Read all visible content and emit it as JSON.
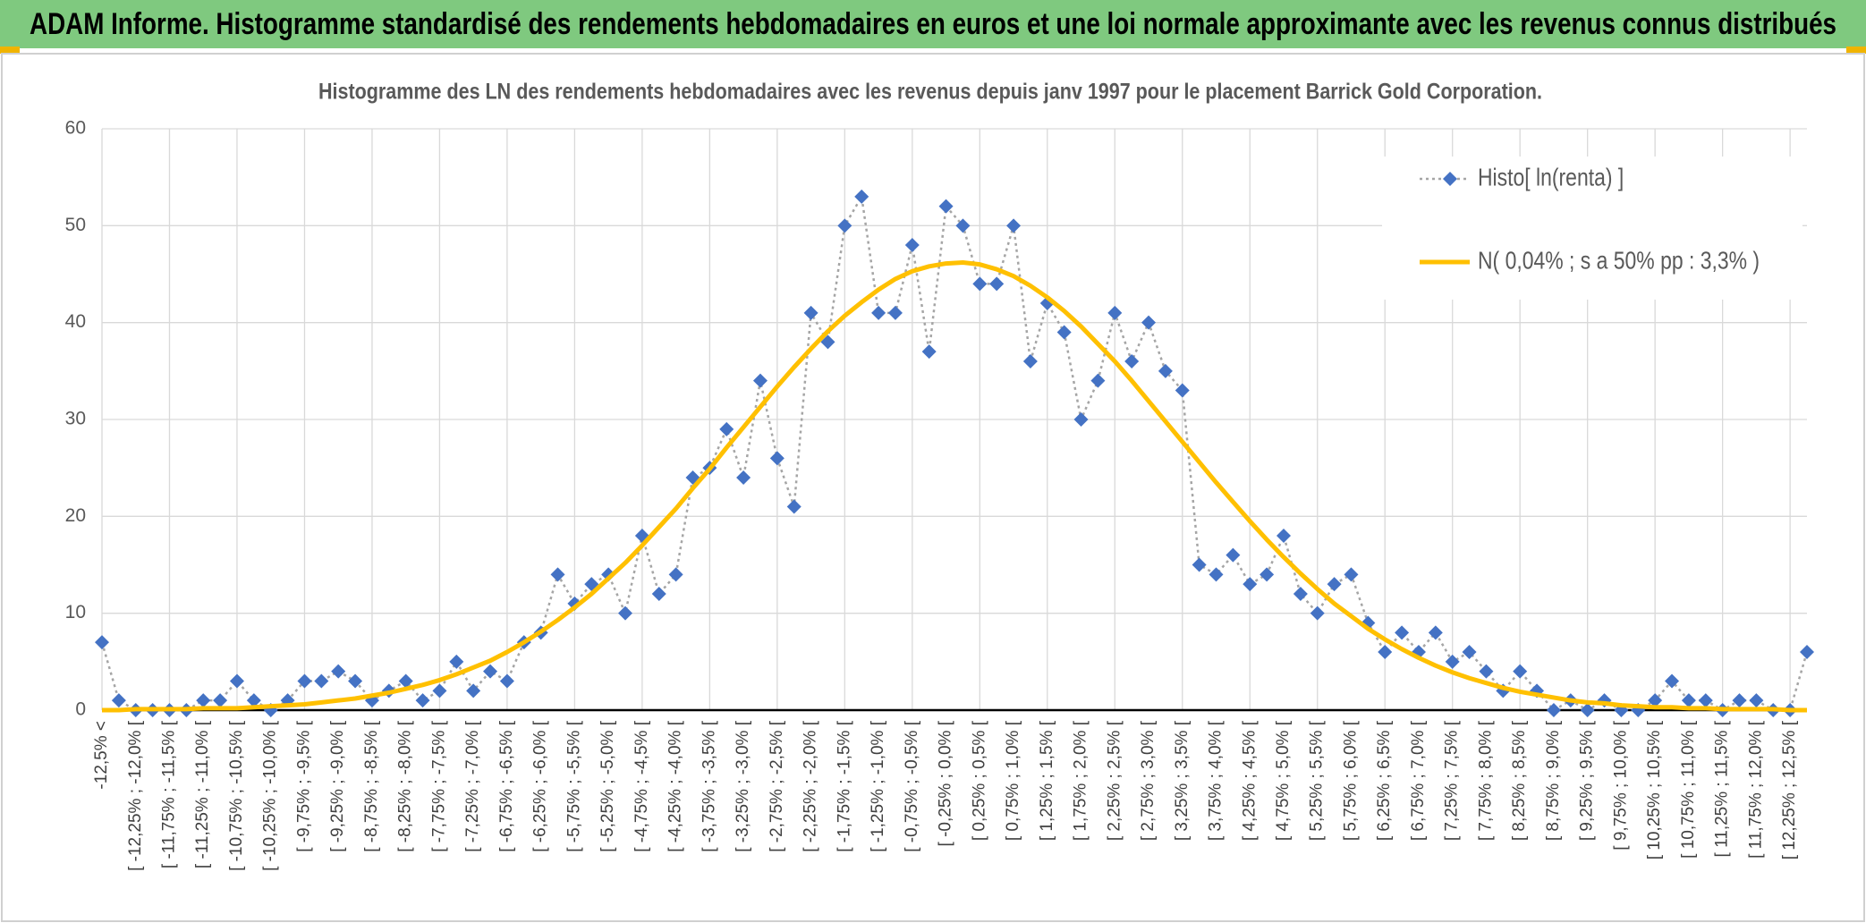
{
  "header": {
    "title": "ADAM Informe. Histogramme standardisé des rendements hebdomadaires en euros et une loi normale approximante avec les revenus connus distribués"
  },
  "chart_data": {
    "type": "line",
    "title": "Histogramme des LN des rendements hebdomadaires avec les revenus depuis janv 1997 pour le placement Barrick Gold Corporation.",
    "categories": [
      "-12,5% <",
      null,
      "[ -12,25% ; -12,0% [",
      null,
      "[ -11,75% ; -11,5% [",
      null,
      "[ -11,25% ; -11,0% [",
      null,
      "[ -10,75% ; -10,5% [",
      null,
      "[ -10,25% ; -10,0% [",
      null,
      "[ -9,75% ; -9,5% [",
      null,
      "[ -9,25% ; -9,0% [",
      null,
      "[ -8,75% ; -8,5% [",
      null,
      "[ -8,25% ; -8,0% [",
      null,
      "[ -7,75% ; -7,5% [",
      null,
      "[ -7,25% ; -7,0% [",
      null,
      "[ -6,75% ; -6,5% [",
      null,
      "[ -6,25% ; -6,0% [",
      null,
      "[ -5,75% ; -5,5% [",
      null,
      "[ -5,25% ; -5,0% [",
      null,
      "[ -4,75% ; -4,5% [",
      null,
      "[ -4,25% ; -4,0% [",
      null,
      "[ -3,75% ; -3,5% [",
      null,
      "[ -3,25% ; -3,0% [",
      null,
      "[ -2,75% ; -2,5% [",
      null,
      "[ -2,25% ; -2,0% [",
      null,
      "[ -1,75% ; -1,5% [",
      null,
      "[ -1,25% ; -1,0% [",
      null,
      "[ -0,75% ; -0,5% [",
      null,
      "[ -0,25% ; 0,0% [",
      null,
      "[ 0,25% ; 0,5% [",
      null,
      "[ 0,75% ; 1,0% [",
      null,
      "[ 1,25% ; 1,5% [",
      null,
      "[ 1,75% ; 2,0% [",
      null,
      "[ 2,25% ; 2,5% [",
      null,
      "[ 2,75% ; 3,0% [",
      null,
      "[ 3,25% ; 3,5% [",
      null,
      "[ 3,75% ; 4,0% [",
      null,
      "[ 4,25% ; 4,5% [",
      null,
      "[ 4,75% ; 5,0% [",
      null,
      "[ 5,25% ; 5,5% [",
      null,
      "[ 5,75% ; 6,0% [",
      null,
      "[ 6,25% ; 6,5% [",
      null,
      "[ 6,75% ; 7,0% [",
      null,
      "[ 7,25% ; 7,5% [",
      null,
      "[ 7,75% ; 8,0% [",
      null,
      "[ 8,25% ; 8,5% [",
      null,
      "[ 8,75% ; 9,0% [",
      null,
      "[ 9,25% ; 9,5% [",
      null,
      "[ 9,75% ; 10,0% [",
      null,
      "[ 10,25% ; 10,5% [",
      null,
      "[ 10,75% ; 11,0% [",
      null,
      "[ 11,25% ; 11,5% [",
      null,
      "[ 11,75% ; 12,0% [",
      null,
      "[ 12,25% ; 12,5% [",
      null
    ],
    "series": [
      {
        "name": "Histo[ ln(renta) ]",
        "color": "#4472c4",
        "line_color": "#a5a5a5",
        "line_style": "dotted",
        "marker": "diamond",
        "values": [
          7,
          1,
          0,
          0,
          0,
          0,
          1,
          1,
          3,
          1,
          0,
          1,
          3,
          3,
          4,
          3,
          1,
          2,
          3,
          1,
          2,
          5,
          2,
          4,
          3,
          7,
          8,
          14,
          11,
          13,
          14,
          10,
          18,
          12,
          14,
          24,
          25,
          29,
          24,
          34,
          26,
          21,
          41,
          38,
          50,
          53,
          41,
          41,
          48,
          37,
          52,
          50,
          44,
          44,
          50,
          36,
          42,
          39,
          30,
          34,
          41,
          36,
          40,
          35,
          33,
          15,
          14,
          16,
          13,
          14,
          18,
          12,
          10,
          13,
          14,
          9,
          6,
          8,
          6,
          8,
          5,
          6,
          4,
          2,
          4,
          2,
          0,
          1,
          0,
          1,
          0,
          0,
          1,
          3,
          1,
          1,
          0,
          1,
          1,
          0,
          0,
          6
        ]
      },
      {
        "name": "N( 0,04% ; s a 50% pp : 3,3% )",
        "color": "#ffc000",
        "line_style": "solid",
        "marker": "none",
        "values": [
          0.0,
          0.0,
          0.1,
          0.1,
          0.1,
          0.1,
          0.2,
          0.2,
          0.2,
          0.3,
          0.4,
          0.5,
          0.6,
          0.8,
          1.0,
          1.2,
          1.5,
          1.8,
          2.2,
          2.6,
          3.1,
          3.7,
          4.4,
          5.1,
          6.0,
          7.0,
          8.1,
          9.3,
          10.6,
          12.0,
          13.6,
          15.2,
          17.0,
          18.9,
          20.8,
          22.9,
          24.9,
          27.1,
          29.2,
          31.3,
          33.4,
          35.4,
          37.3,
          39.1,
          40.7,
          42.1,
          43.4,
          44.5,
          45.3,
          45.8,
          46.1,
          46.2,
          46.0,
          45.5,
          44.8,
          43.8,
          42.6,
          41.2,
          39.6,
          37.8,
          36.0,
          34.0,
          31.9,
          29.8,
          27.7,
          25.6,
          23.5,
          21.5,
          19.5,
          17.6,
          15.8,
          14.1,
          12.5,
          11.0,
          9.7,
          8.4,
          7.3,
          6.3,
          5.4,
          4.6,
          3.9,
          3.3,
          2.8,
          2.3,
          1.9,
          1.6,
          1.3,
          1.0,
          0.8,
          0.7,
          0.5,
          0.4,
          0.3,
          0.3,
          0.2,
          0.2,
          0.1,
          0.1,
          0.1,
          0.1,
          0.0,
          0.0
        ]
      }
    ],
    "ylim": [
      0,
      60
    ],
    "yticks": [
      0,
      10,
      20,
      30,
      40,
      50,
      60
    ],
    "grid": true,
    "legend": "top-right"
  }
}
